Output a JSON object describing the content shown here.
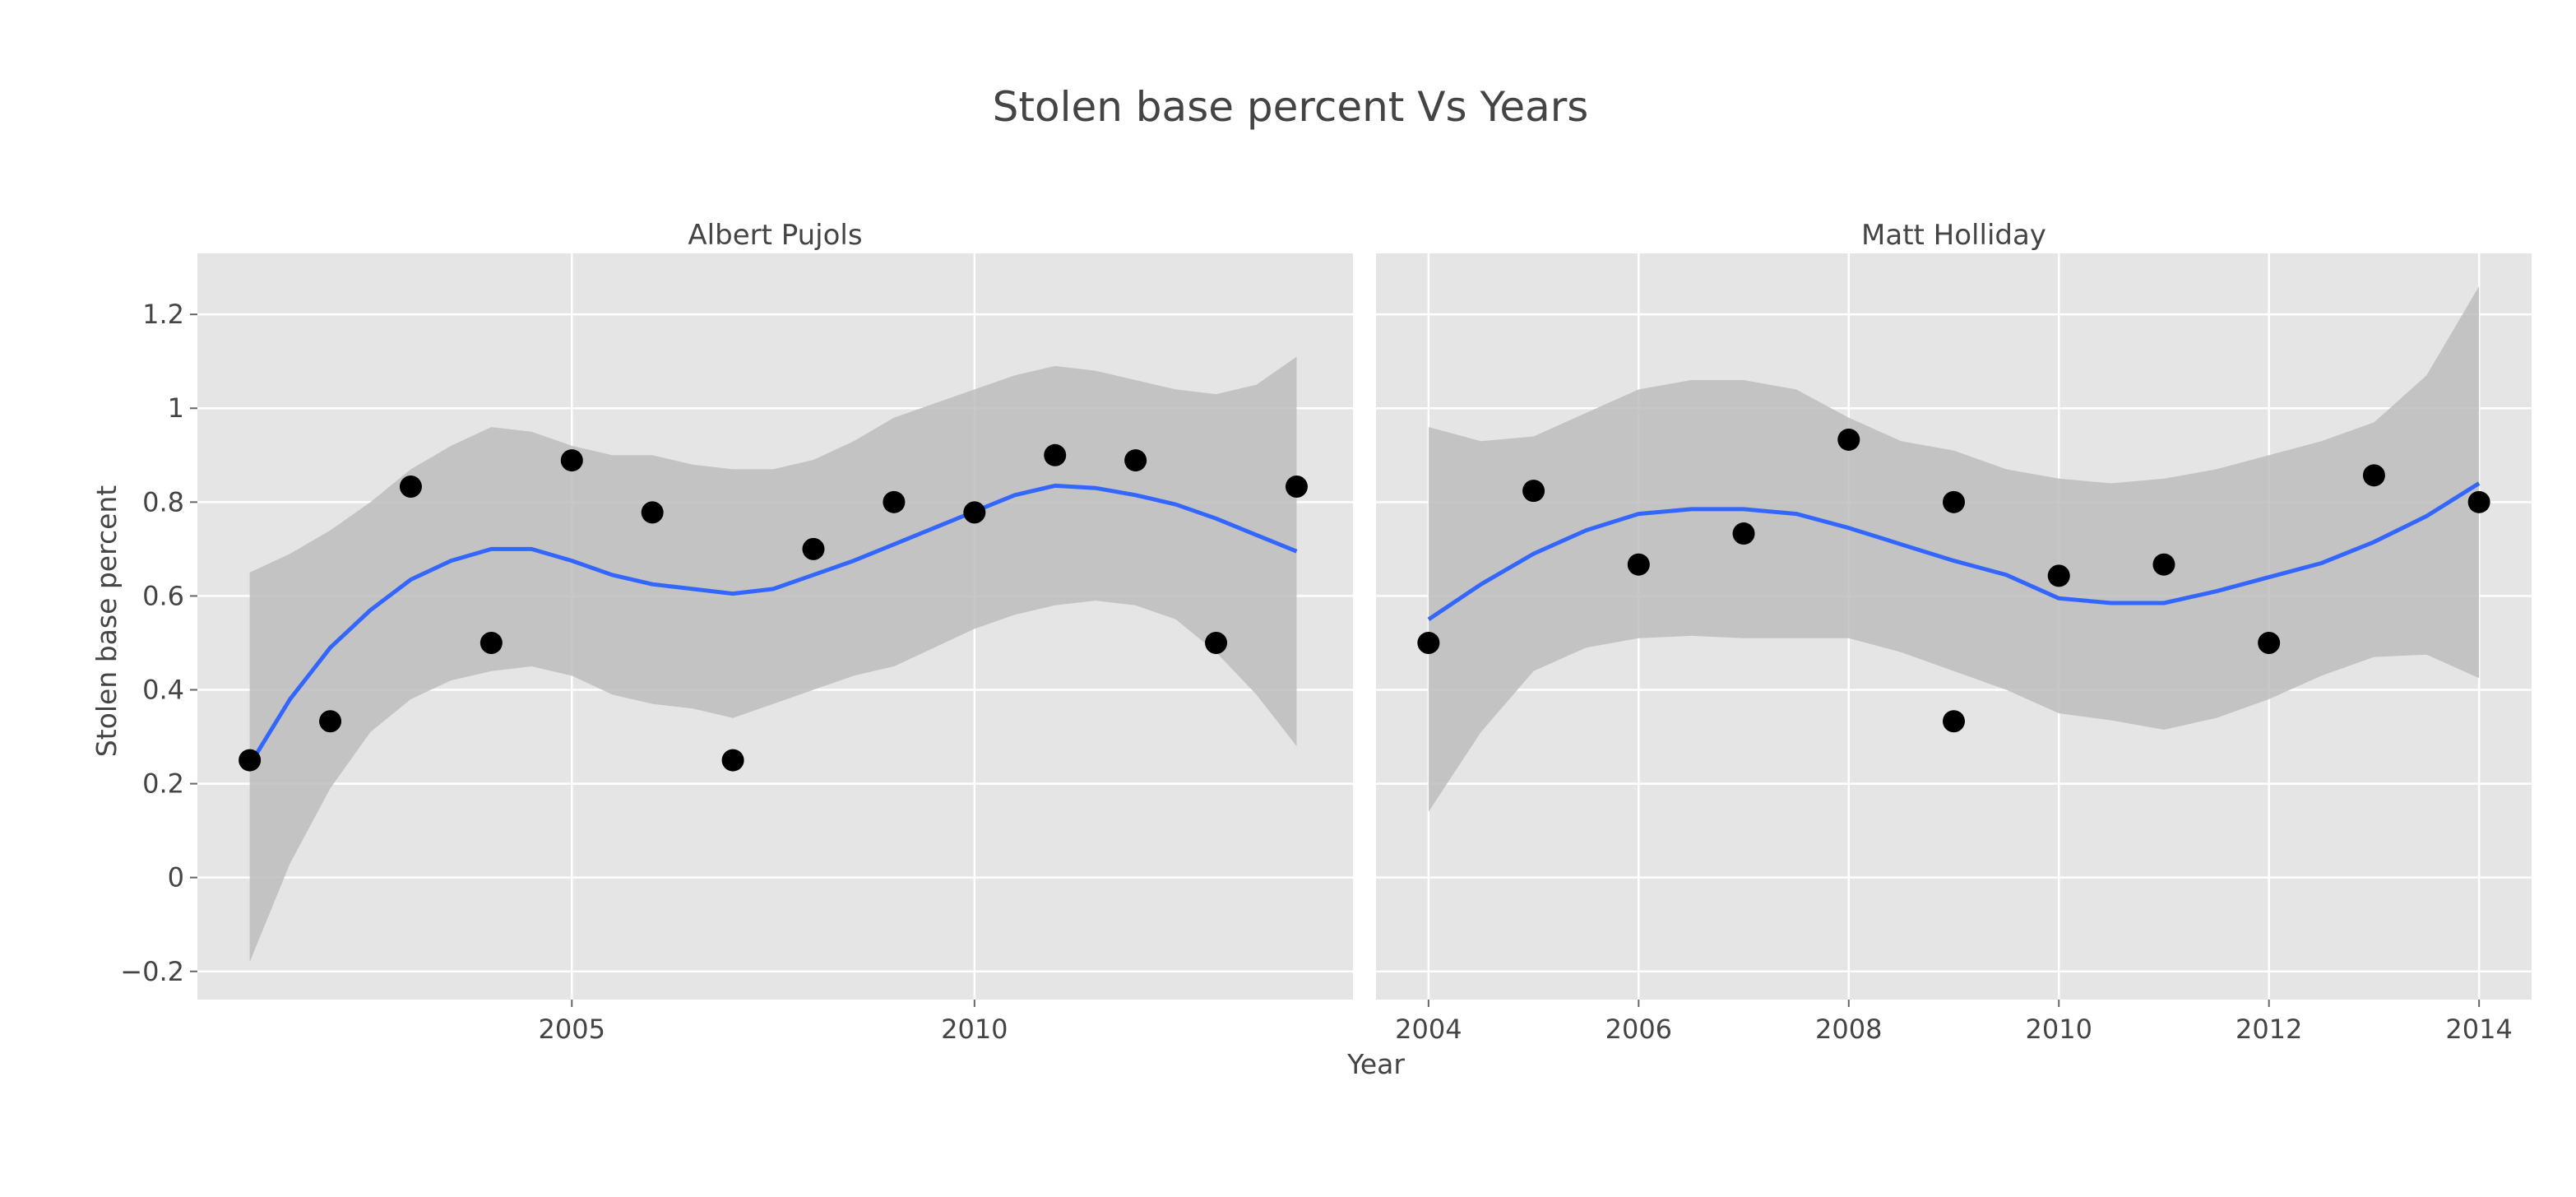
{
  "title": "Stolen base percent Vs Years",
  "xlabel": "Year",
  "ylabel": "Stolen base percent",
  "colors": {
    "panel_bg": "#E5E5E5",
    "grid": "#FFFFFF",
    "band": "#BDBDBD",
    "line": "#3366FF",
    "point": "#000000",
    "text": "#444444"
  },
  "chart_data": {
    "type": "scatter",
    "title": "Stolen base percent Vs Years",
    "xlabel": "Year",
    "ylabel": "Stolen base percent",
    "grid": true,
    "ylim": [
      -0.26,
      1.33
    ],
    "yticks": [
      -0.2,
      0,
      0.2,
      0.4,
      0.6,
      0.8,
      1,
      1.2
    ],
    "ytick_labels": [
      "−0.2",
      "0",
      "0.2",
      "0.4",
      "0.6",
      "0.8",
      "1",
      "1.2"
    ],
    "panels": [
      {
        "name": "Albert Pujols",
        "xlim": [
          2000.35,
          2014.7
        ],
        "xticks": [
          2005,
          2010
        ],
        "points": [
          {
            "x": 2001,
            "y": 0.25
          },
          {
            "x": 2002,
            "y": 0.333
          },
          {
            "x": 2003,
            "y": 0.833
          },
          {
            "x": 2004,
            "y": 0.5
          },
          {
            "x": 2005,
            "y": 0.889
          },
          {
            "x": 2006,
            "y": 0.778
          },
          {
            "x": 2007,
            "y": 0.25
          },
          {
            "x": 2008,
            "y": 0.7
          },
          {
            "x": 2009,
            "y": 0.8
          },
          {
            "x": 2010,
            "y": 0.778
          },
          {
            "x": 2011,
            "y": 0.9
          },
          {
            "x": 2012,
            "y": 0.889
          },
          {
            "x": 2013,
            "y": 0.5
          },
          {
            "x": 2014,
            "y": 0.833
          }
        ],
        "smooth": {
          "x": [
            2001,
            2001.5,
            2002,
            2002.5,
            2003,
            2003.5,
            2004,
            2004.5,
            2005,
            2005.5,
            2006,
            2006.5,
            2007,
            2007.5,
            2008,
            2008.5,
            2009,
            2009.5,
            2010,
            2010.5,
            2011,
            2011.5,
            2012,
            2012.5,
            2013,
            2013.5,
            2014
          ],
          "y": [
            0.24,
            0.38,
            0.49,
            0.57,
            0.635,
            0.675,
            0.7,
            0.7,
            0.675,
            0.645,
            0.625,
            0.615,
            0.605,
            0.615,
            0.645,
            0.675,
            0.71,
            0.745,
            0.78,
            0.815,
            0.835,
            0.83,
            0.815,
            0.795,
            0.765,
            0.73,
            0.695
          ],
          "upper": [
            0.65,
            0.69,
            0.74,
            0.8,
            0.87,
            0.92,
            0.96,
            0.95,
            0.92,
            0.9,
            0.9,
            0.88,
            0.87,
            0.87,
            0.89,
            0.93,
            0.98,
            1.01,
            1.04,
            1.07,
            1.09,
            1.08,
            1.06,
            1.04,
            1.03,
            1.05,
            1.11
          ],
          "lower": [
            -0.18,
            0.03,
            0.19,
            0.31,
            0.38,
            0.42,
            0.44,
            0.45,
            0.43,
            0.39,
            0.37,
            0.36,
            0.34,
            0.37,
            0.4,
            0.43,
            0.45,
            0.49,
            0.53,
            0.56,
            0.58,
            0.59,
            0.58,
            0.55,
            0.48,
            0.39,
            0.28
          ]
        }
      },
      {
        "name": "Matt Holliday",
        "xlim": [
          2003.5,
          2014.5
        ],
        "xticks": [
          2004,
          2006,
          2008,
          2010,
          2012,
          2014
        ],
        "points": [
          {
            "x": 2004,
            "y": 0.5
          },
          {
            "x": 2005,
            "y": 0.824
          },
          {
            "x": 2006,
            "y": 0.667
          },
          {
            "x": 2007,
            "y": 0.733
          },
          {
            "x": 2008,
            "y": 0.933
          },
          {
            "x": 2009,
            "y": 0.8
          },
          {
            "x": 2009,
            "y": 0.333
          },
          {
            "x": 2010,
            "y": 0.643
          },
          {
            "x": 2011,
            "y": 0.667
          },
          {
            "x": 2012,
            "y": 0.5
          },
          {
            "x": 2013,
            "y": 0.857
          },
          {
            "x": 2014,
            "y": 0.8
          }
        ],
        "smooth": {
          "x": [
            2004,
            2004.5,
            2005,
            2005.5,
            2006,
            2006.5,
            2007,
            2007.5,
            2008,
            2008.5,
            2009,
            2009.5,
            2010,
            2010.5,
            2011,
            2011.5,
            2012,
            2012.5,
            2013,
            2013.5,
            2014
          ],
          "y": [
            0.55,
            0.625,
            0.69,
            0.74,
            0.775,
            0.785,
            0.785,
            0.775,
            0.745,
            0.71,
            0.675,
            0.645,
            0.595,
            0.585,
            0.585,
            0.61,
            0.64,
            0.67,
            0.715,
            0.77,
            0.84
          ],
          "upper": [
            0.96,
            0.93,
            0.94,
            0.99,
            1.04,
            1.06,
            1.06,
            1.04,
            0.98,
            0.93,
            0.91,
            0.87,
            0.85,
            0.84,
            0.85,
            0.87,
            0.9,
            0.93,
            0.97,
            1.07,
            1.26
          ],
          "lower": [
            0.14,
            0.31,
            0.44,
            0.49,
            0.51,
            0.515,
            0.51,
            0.51,
            0.51,
            0.48,
            0.44,
            0.4,
            0.35,
            0.335,
            0.315,
            0.34,
            0.38,
            0.43,
            0.47,
            0.475,
            0.425
          ]
        }
      }
    ]
  }
}
